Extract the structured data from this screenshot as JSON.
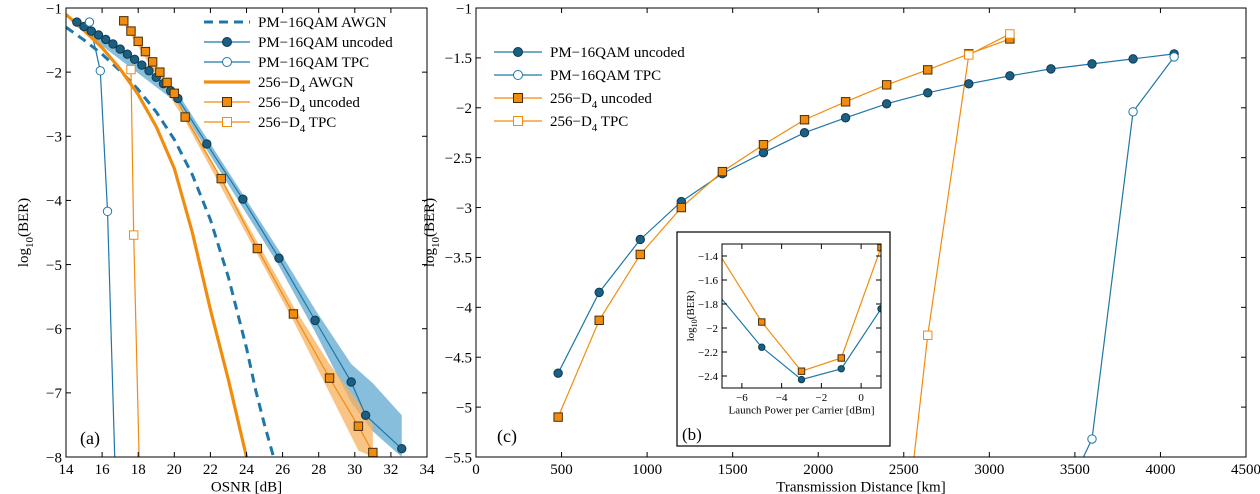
{
  "colors": {
    "blue": "#1f77a8",
    "orange": "#f28c0f",
    "band_blue": "#5da8cf",
    "band_orange": "#f7b25e"
  },
  "chart_data": [
    {
      "panel_label": "(a)",
      "type": "line",
      "xlabel": "OSNR [dB]",
      "ylabel": "log10(BER)",
      "ylabel_main": "log",
      "ylabel_sub": "10",
      "ylabel_tail": "(BER)",
      "xlim": [
        14,
        34
      ],
      "ylim": [
        -8,
        -1
      ],
      "x_ticks": [
        14,
        16,
        18,
        20,
        22,
        24,
        26,
        28,
        30,
        32,
        34
      ],
      "y_ticks": [
        -1,
        -2,
        -3,
        -4,
        -5,
        -6,
        -7,
        -8
      ],
      "legend_position": "top-right",
      "series": [
        {
          "name": "PM−16QAM AWGN",
          "color": "#1f77a8",
          "style": "dashed",
          "marker": "none",
          "x": [
            14,
            15,
            16,
            17,
            18,
            19,
            20,
            21,
            22,
            23,
            24,
            24.5,
            25,
            25.5
          ],
          "y": [
            -1.3,
            -1.5,
            -1.72,
            -1.98,
            -2.27,
            -2.62,
            -3.05,
            -3.6,
            -4.3,
            -5.2,
            -6.3,
            -6.95,
            -7.5,
            -8
          ]
        },
        {
          "name": "PM−16QAM uncoded",
          "color": "#1f77a8",
          "style": "solid",
          "marker": "circle-filled",
          "x": [
            14.6,
            15,
            15.4,
            15.8,
            16.2,
            16.6,
            17,
            17.4,
            17.8,
            18.2,
            18.6,
            19,
            19.4,
            19.8,
            20.2,
            21.8,
            23.8,
            25.8,
            27.8,
            29.8,
            30.6,
            32.6
          ],
          "y": [
            -1.22,
            -1.29,
            -1.36,
            -1.42,
            -1.49,
            -1.56,
            -1.64,
            -1.72,
            -1.8,
            -1.89,
            -1.98,
            -2.08,
            -2.18,
            -2.29,
            -2.41,
            -3.12,
            -3.98,
            -4.9,
            -5.87,
            -6.83,
            -7.35,
            -7.87
          ],
          "band": [
            [
              14.6,
              -1.15,
              -1.29
            ],
            [
              20.2,
              -2.33,
              -2.49
            ],
            [
              25.8,
              -4.78,
              -5.02
            ],
            [
              27.8,
              -5.7,
              -6.05
            ],
            [
              29.8,
              -6.55,
              -7.15
            ],
            [
              31,
              -6.85,
              -7.6
            ],
            [
              32.6,
              -7.35,
              -8
            ]
          ]
        },
        {
          "name": "PM−16QAM TPC",
          "color": "#1f77a8",
          "style": "solid",
          "marker": "circle-open",
          "x": [
            15.3,
            15.9,
            16.3,
            16.7
          ],
          "y": [
            -1.22,
            -1.98,
            -4.17,
            -8
          ]
        },
        {
          "name": "256−D4 AWGN",
          "name_main": "256−D",
          "name_sub": "4",
          "name_tail": " AWGN",
          "color": "#f28c0f",
          "style": "solid-thick",
          "marker": "none",
          "x": [
            14,
            15,
            16,
            17,
            18,
            19,
            20,
            21,
            22,
            23,
            23.5,
            24
          ],
          "y": [
            -1.1,
            -1.35,
            -1.62,
            -1.95,
            -2.35,
            -2.85,
            -3.5,
            -4.5,
            -5.7,
            -6.8,
            -7.4,
            -8
          ]
        },
        {
          "name": "256−D4 uncoded",
          "name_main": "256−D",
          "name_sub": "4",
          "name_tail": " uncoded",
          "color": "#f28c0f",
          "style": "solid",
          "marker": "square-filled",
          "x": [
            17.2,
            17.6,
            18,
            18.4,
            18.8,
            19.2,
            19.6,
            20,
            20.6,
            22.6,
            24.6,
            26.6,
            28.6,
            30.2,
            31
          ],
          "y": [
            -1.2,
            -1.36,
            -1.52,
            -1.68,
            -1.84,
            -2.0,
            -2.16,
            -2.33,
            -2.7,
            -3.66,
            -4.75,
            -5.77,
            -6.77,
            -7.52,
            -7.93
          ],
          "band": [
            [
              17.2,
              -1.15,
              -1.25
            ],
            [
              20.6,
              -2.64,
              -2.76
            ],
            [
              26.6,
              -5.65,
              -5.88
            ],
            [
              28.6,
              -6.55,
              -7.0
            ],
            [
              30.2,
              -7.15,
              -7.9
            ],
            [
              31,
              -7.5,
              -8
            ]
          ]
        },
        {
          "name": "256−D4 TPC",
          "name_main": "256−D",
          "name_sub": "4",
          "name_tail": " TPC",
          "color": "#f28c0f",
          "style": "solid",
          "marker": "square-open",
          "x": [
            17.6,
            17.75,
            18.05
          ],
          "y": [
            -1.96,
            -4.54,
            -8
          ]
        }
      ]
    },
    {
      "panel_label": "(c)",
      "type": "line",
      "xlabel": "Transmission Distance [km]",
      "ylabel": "log10(BER)",
      "ylabel_main": "log",
      "ylabel_sub": "10",
      "ylabel_tail": "(BER)",
      "xlim": [
        0,
        4500
      ],
      "ylim": [
        -5.5,
        -1
      ],
      "x_ticks": [
        0,
        500,
        1000,
        1500,
        2000,
        2500,
        3000,
        3500,
        4000,
        4500
      ],
      "y_ticks": [
        -1,
        -1.5,
        -2,
        -2.5,
        -3,
        -3.5,
        -4,
        -4.5,
        -5,
        -5.5
      ],
      "legend_position": "top-left",
      "series": [
        {
          "name": "PM−16QAM uncoded",
          "color": "#1f77a8",
          "style": "solid",
          "marker": "circle-filled",
          "x": [
            480,
            720,
            960,
            1200,
            1440,
            1680,
            1920,
            2160,
            2400,
            2640,
            2880,
            3120,
            3360,
            3600,
            3840,
            4080
          ],
          "y": [
            -4.66,
            -3.85,
            -3.32,
            -2.94,
            -2.66,
            -2.45,
            -2.25,
            -2.1,
            -1.96,
            -1.85,
            -1.76,
            -1.68,
            -1.61,
            -1.56,
            -1.51,
            -1.46
          ]
        },
        {
          "name": "PM−16QAM TPC",
          "color": "#1f77a8",
          "style": "solid",
          "marker": "circle-open",
          "x": [
            3550,
            3600,
            3840,
            4080
          ],
          "y": [
            -5.5,
            -5.32,
            -2.04,
            -1.49
          ]
        },
        {
          "name": "256−D4 uncoded",
          "name_main": "256−D",
          "name_sub": "4",
          "name_tail": " uncoded",
          "color": "#f28c0f",
          "style": "solid",
          "marker": "square-filled",
          "x": [
            480,
            720,
            960,
            1200,
            1440,
            1680,
            1920,
            2160,
            2400,
            2640,
            2880,
            3120
          ],
          "y": [
            -5.1,
            -4.13,
            -3.47,
            -3.0,
            -2.64,
            -2.37,
            -2.12,
            -1.94,
            -1.77,
            -1.62,
            -1.46,
            -1.31
          ]
        },
        {
          "name": "256−D4 TPC",
          "name_main": "256−D",
          "name_sub": "4",
          "name_tail": " TPC",
          "color": "#f28c0f",
          "style": "solid",
          "marker": "square-open",
          "x": [
            2560,
            2640,
            2880,
            3120
          ],
          "y": [
            -5.5,
            -4.28,
            -1.47,
            -1.26
          ]
        }
      ]
    },
    {
      "panel_label": "(b)",
      "type": "line",
      "inset": true,
      "xlabel": "Launch Power per Carrier [dBm]",
      "ylabel": "log10(BER)",
      "ylabel_main": "log",
      "ylabel_sub": "10",
      "ylabel_tail": "(BER)",
      "xlim": [
        -7,
        1
      ],
      "ylim": [
        -2.5,
        -1.3
      ],
      "x_ticks": [
        -6,
        -4,
        -2,
        0
      ],
      "y_ticks": [
        -1.4,
        -1.6,
        -1.8,
        -2,
        -2.2,
        -2.4
      ],
      "series": [
        {
          "name": "PM−16QAM uncoded",
          "color": "#1f77a8",
          "style": "solid",
          "marker": "circle-filled",
          "x": [
            -7,
            -5,
            -3,
            -1,
            1
          ],
          "y": [
            -1.76,
            -2.16,
            -2.43,
            -2.34,
            -1.84
          ]
        },
        {
          "name": "256−D4 uncoded",
          "color": "#f28c0f",
          "style": "solid",
          "marker": "square-filled",
          "x": [
            -7,
            -5,
            -3,
            -1,
            1
          ],
          "y": [
            -1.42,
            -1.95,
            -2.36,
            -2.25,
            -1.33
          ]
        }
      ]
    }
  ]
}
